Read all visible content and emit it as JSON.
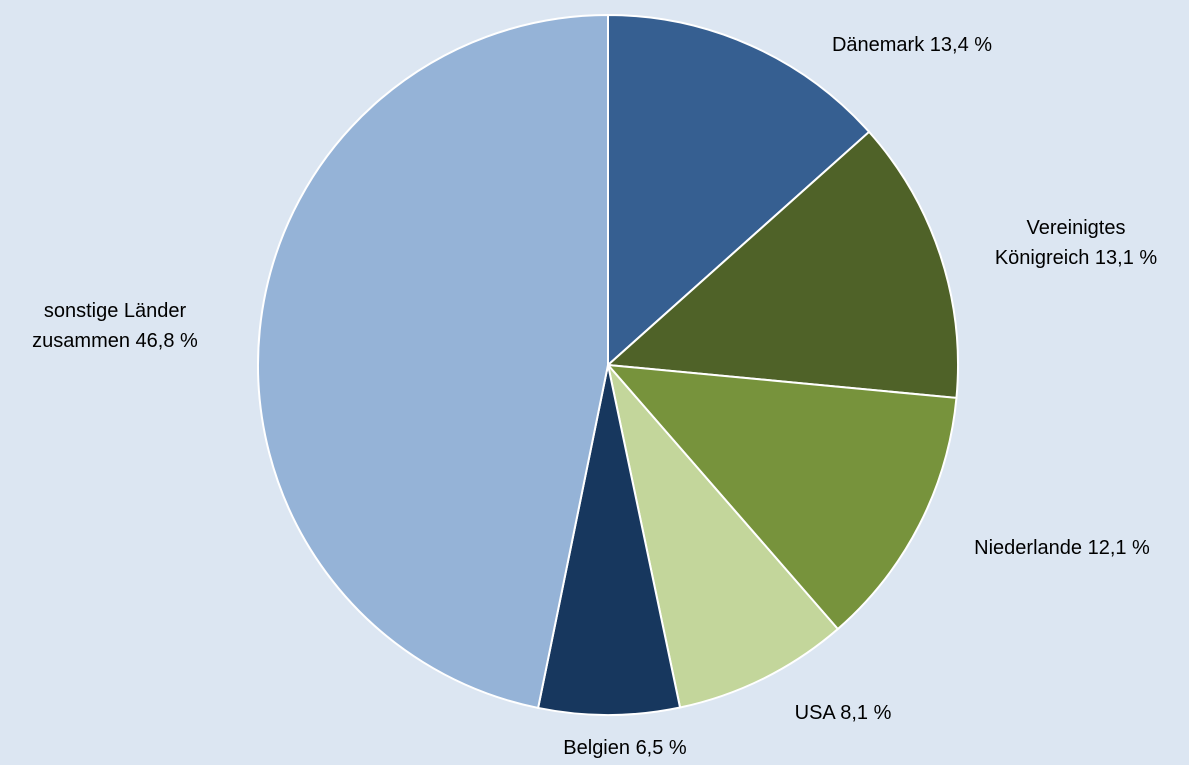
{
  "chart_data": {
    "type": "pie",
    "categories": [
      "Dänemark",
      "Vereinigtes Königreich",
      "Niederlande",
      "USA",
      "Belgien",
      "sonstige Länder zusammen"
    ],
    "values": [
      13.4,
      13.1,
      12.1,
      8.1,
      6.5,
      46.8
    ],
    "value_labels": [
      "13,4 %",
      "13,1 %",
      "12,1 %",
      "8,1 %",
      "6,5 %",
      "46,8 %"
    ],
    "colors": [
      "#365f91",
      "#4f6228",
      "#77933c",
      "#c3d69b",
      "#17375e",
      "#95b3d7"
    ]
  }
}
